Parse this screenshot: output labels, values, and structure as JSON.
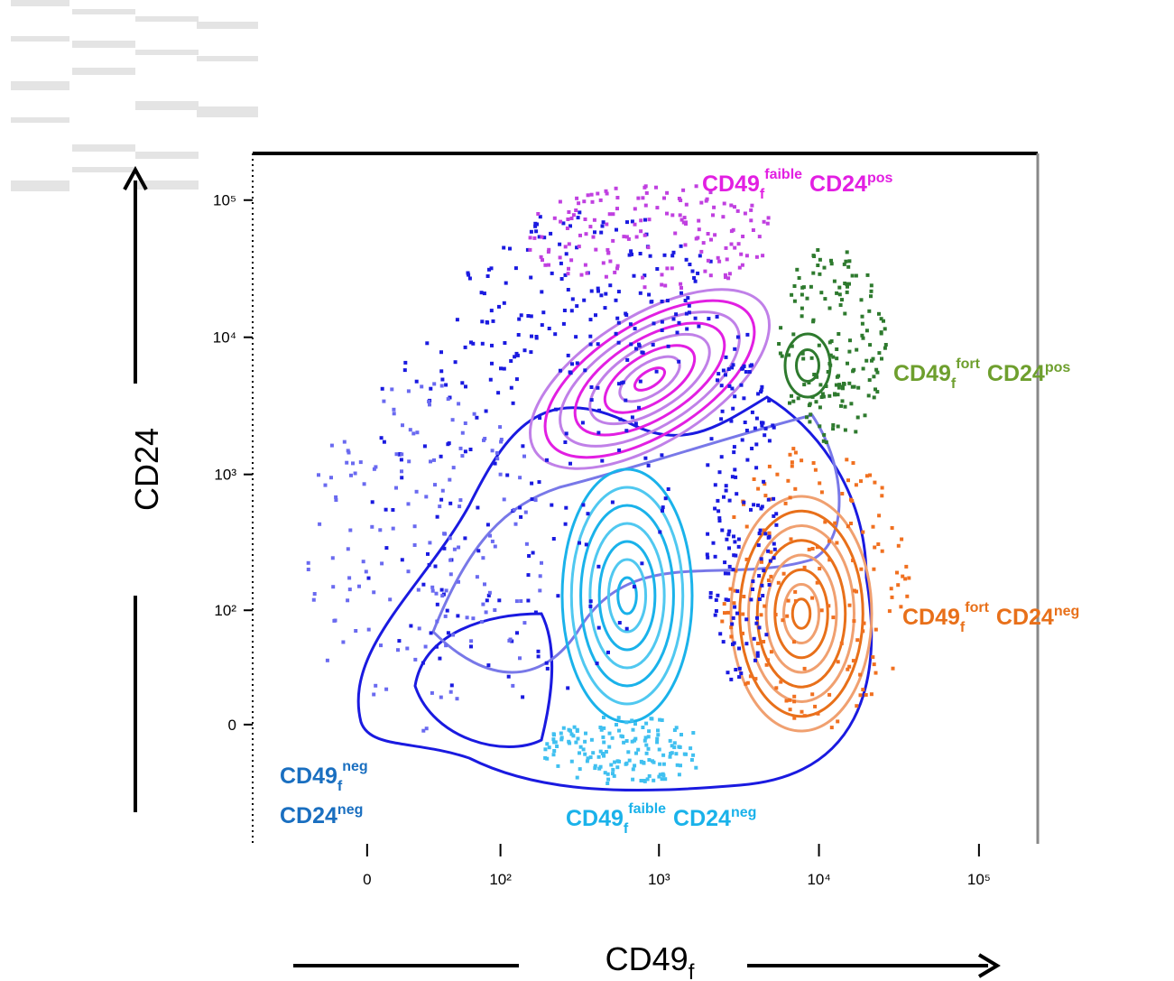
{
  "chart_data": {
    "type": "contour",
    "x_label": {
      "main": "CD49",
      "sub": "f"
    },
    "y_label": "CD24",
    "x_scale": "biexponential",
    "y_scale": "biexponential",
    "xlim": [
      -75,
      233000
    ],
    "ylim": [
      -109,
      219000
    ],
    "xticks": [
      0,
      {
        "value": 100,
        "label": "10²"
      },
      {
        "value": 1000,
        "label": "10³"
      },
      {
        "value": 10000,
        "label": "10⁴"
      },
      {
        "value": 100000,
        "label": "10⁵"
      }
    ],
    "yticks": [
      0,
      {
        "value": 100,
        "label": "10²"
      },
      {
        "value": 1000,
        "label": "10³"
      },
      {
        "value": 10000,
        "label": "10⁴"
      },
      {
        "value": 100000,
        "label": "10⁵"
      }
    ],
    "populations": [
      {
        "marker1": "CD49",
        "sub": "f",
        "sup1": "faible",
        "marker2": "CD24",
        "sup2": "pos",
        "color": "#e21fe2"
      },
      {
        "marker1": "CD49",
        "sub": "f",
        "sup1": "fort",
        "marker2": "CD24",
        "sup2": "pos",
        "color": "#6e9f2e"
      },
      {
        "marker1": "CD49",
        "sub": "f",
        "sup1": "fort",
        "marker2": "CD24",
        "sup2": "neg",
        "color": "#e8701a"
      },
      {
        "marker1": "CD49",
        "sub": "f",
        "sup1": "faible",
        "marker2": "CD24",
        "sup2": "neg",
        "color": "#1ab2ea"
      },
      {
        "marker1": "CD49",
        "sub": "f",
        "sup1": "neg",
        "marker2": "CD24",
        "sup2": "neg",
        "color": "#1a6fc0"
      }
    ]
  }
}
